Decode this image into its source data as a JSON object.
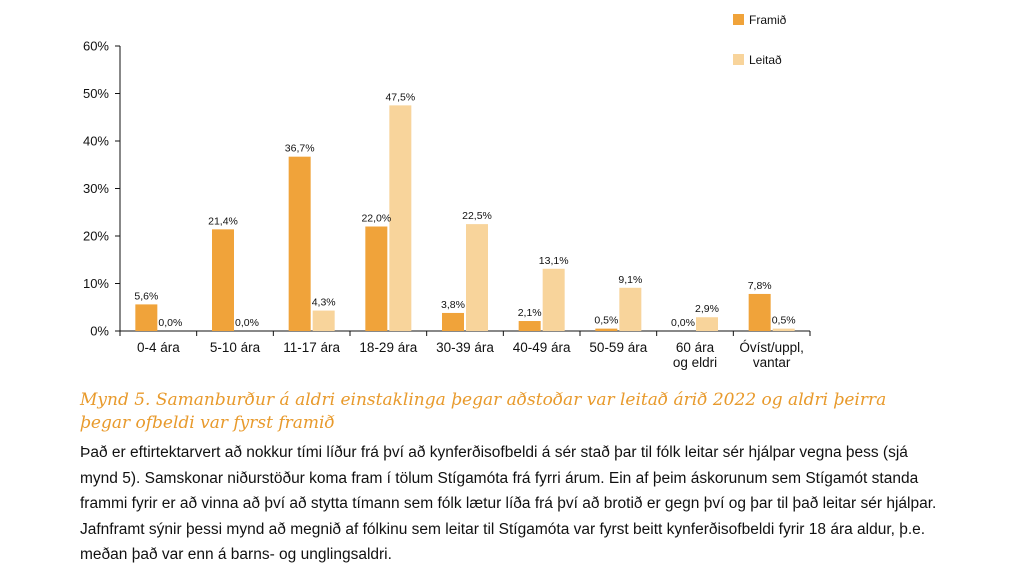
{
  "chart_data": {
    "type": "bar",
    "categories": [
      "0-4 ára",
      "5-10 ára",
      "11-17 ára",
      "18-29 ára",
      "30-39 ára",
      "40-49 ára",
      "50-59 ára",
      "60 ára og eldri",
      "Óvíst/uppl, vantar"
    ],
    "category_lines": [
      [
        "0-4 ára"
      ],
      [
        "5-10 ára"
      ],
      [
        "11-17 ára"
      ],
      [
        "18-29 ára"
      ],
      [
        "30-39 ára"
      ],
      [
        "40-49 ára"
      ],
      [
        "50-59 ára"
      ],
      [
        "60 ára",
        "og eldri"
      ],
      [
        "Óvíst/uppl,",
        "vantar"
      ]
    ],
    "series": [
      {
        "name": "Framið",
        "color": "#f0a33a",
        "values": [
          5.6,
          21.4,
          36.7,
          22.0,
          3.8,
          2.1,
          0.5,
          0.0,
          7.8
        ],
        "labels": [
          "5,6%",
          "21,4%",
          "36,7%",
          "22,0%",
          "3,8%",
          "2,1%",
          "0,5%",
          "0,0%",
          "7,8%"
        ]
      },
      {
        "name": "Leitað",
        "color": "#f8d49b",
        "values": [
          0.0,
          0.0,
          4.3,
          47.5,
          22.5,
          13.1,
          9.1,
          2.9,
          0.5
        ],
        "labels": [
          "0,0%",
          "0,0%",
          "4,3%",
          "47,5%",
          "22,5%",
          "13,1%",
          "9,1%",
          "2,9%",
          "0,5%"
        ]
      }
    ],
    "yticks": [
      0,
      10,
      20,
      30,
      40,
      50,
      60
    ],
    "ytick_labels": [
      "0%",
      "10%",
      "20%",
      "30%",
      "40%",
      "50%",
      "60%"
    ],
    "ylim": [
      0,
      60
    ],
    "legend_position": "top-right",
    "grid": false,
    "title": "",
    "xlabel": "",
    "ylabel": ""
  },
  "caption": "Mynd 5. Samanburður á aldri einstaklinga þegar aðstoðar var leitað árið 2022 og aldri þeirra þegar ofbeldi var fyrst framið",
  "body_lines": [
    "Það er eftirtektarvert að nokkur tími líður frá því að kynferðisofbeldi á sér stað þar til fólk leitar sér hjálpar vegna þess (sjá",
    "mynd 5). Samskonar niðurstöður koma fram í tölum Stígamóta frá fyrri árum. Ein af þeim áskorunum sem Stígamót standa",
    "frammi fyrir er að vinna að því að stytta tímann sem fólk lætur líða frá því að brotið er gegn því og þar til það leitar sér hjálpar.",
    "Jafnframt sýnir þessi mynd að megnið af fólkinu sem leitar til Stígamóta var fyrst beitt kynferðisofbeldi fyrir 18 ára aldur, þ.e.",
    "meðan það var enn á barns- og unglingsaldri."
  ]
}
